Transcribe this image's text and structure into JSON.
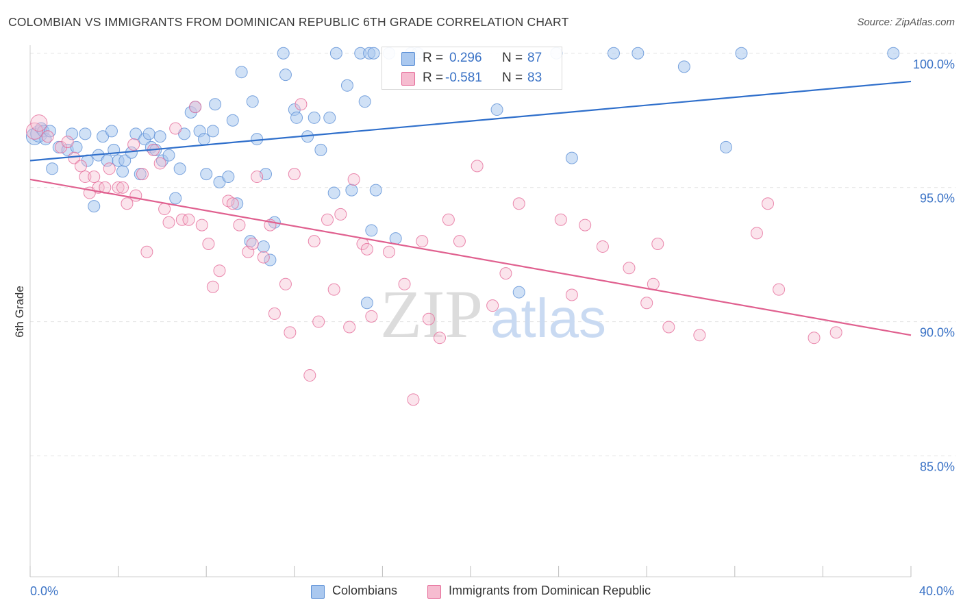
{
  "title": "COLOMBIAN VS IMMIGRANTS FROM DOMINICAN REPUBLIC 6TH GRADE CORRELATION CHART",
  "source": "Source: ZipAtlas.com",
  "watermark": {
    "zip": "ZIP",
    "atlas": "atlas"
  },
  "legend_top": {
    "rows": [
      {
        "r_label": "R =",
        "r_value": "0.296",
        "n_label": "N =",
        "n_value": "87",
        "color": "#aac8ef"
      },
      {
        "r_label": "R =",
        "r_value": "-0.581",
        "n_label": "N =",
        "n_value": "83",
        "color": "#f6bcd0"
      }
    ]
  },
  "legend_bottom": [
    {
      "label": "Colombians",
      "color": "#aac8ef"
    },
    {
      "label": "Immigrants from Dominican Republic",
      "color": "#f6bcd0"
    }
  ],
  "chart_data": {
    "type": "scatter",
    "title": "COLOMBIAN VS IMMIGRANTS FROM DOMINICAN REPUBLIC 6TH GRADE CORRELATION CHART",
    "xlabel": "",
    "ylabel": "6th Grade",
    "xlim": [
      0,
      40
    ],
    "ylim": [
      80.5,
      100.3
    ],
    "x_tick_labels": {
      "left": "0.0%",
      "right": "40.0%"
    },
    "y_ticks": [
      {
        "value": 100,
        "label": "100.0%"
      },
      {
        "value": 95,
        "label": "95.0%"
      },
      {
        "value": 90,
        "label": "90.0%"
      },
      {
        "value": 85,
        "label": "85.0%"
      }
    ],
    "x_minor_ticks": [
      0,
      4,
      8,
      12,
      16,
      20,
      24,
      28,
      32,
      36,
      40
    ],
    "grid": true,
    "series": [
      {
        "name": "Colombians",
        "color": "#5b8fd6",
        "fill": "#aac8ef",
        "trend": {
          "x": [
            0,
            40
          ],
          "y": [
            96.0,
            98.95
          ]
        },
        "points": [
          [
            0.2,
            96.9
          ],
          [
            0.4,
            97.0
          ],
          [
            0.5,
            97.2
          ],
          [
            0.6,
            97.1
          ],
          [
            0.7,
            96.8
          ],
          [
            0.9,
            97.1
          ],
          [
            1.3,
            96.5
          ],
          [
            1.0,
            95.7
          ],
          [
            1.7,
            96.4
          ],
          [
            1.9,
            97.0
          ],
          [
            2.1,
            96.5
          ],
          [
            2.5,
            97.0
          ],
          [
            2.6,
            96.0
          ],
          [
            2.9,
            94.3
          ],
          [
            3.1,
            96.2
          ],
          [
            3.3,
            96.9
          ],
          [
            3.5,
            96.0
          ],
          [
            3.7,
            97.1
          ],
          [
            3.8,
            96.4
          ],
          [
            4.0,
            96.0
          ],
          [
            4.2,
            95.6
          ],
          [
            4.3,
            96.0
          ],
          [
            4.6,
            96.3
          ],
          [
            4.8,
            97.0
          ],
          [
            5.0,
            95.5
          ],
          [
            5.2,
            96.8
          ],
          [
            5.4,
            97.0
          ],
          [
            5.5,
            96.5
          ],
          [
            5.7,
            96.4
          ],
          [
            5.9,
            96.9
          ],
          [
            6.0,
            96.0
          ],
          [
            6.3,
            96.2
          ],
          [
            6.6,
            94.6
          ],
          [
            6.8,
            95.7
          ],
          [
            7.0,
            97.0
          ],
          [
            7.3,
            97.8
          ],
          [
            7.5,
            98.0
          ],
          [
            7.7,
            97.1
          ],
          [
            7.9,
            96.8
          ],
          [
            8.0,
            95.5
          ],
          [
            8.3,
            97.1
          ],
          [
            8.4,
            98.1
          ],
          [
            8.6,
            95.2
          ],
          [
            9.0,
            95.4
          ],
          [
            9.2,
            97.5
          ],
          [
            9.4,
            94.4
          ],
          [
            9.6,
            99.3
          ],
          [
            10.0,
            93.0
          ],
          [
            10.1,
            98.2
          ],
          [
            10.3,
            96.8
          ],
          [
            10.6,
            92.8
          ],
          [
            10.7,
            95.5
          ],
          [
            10.9,
            92.3
          ],
          [
            11.1,
            93.7
          ],
          [
            11.5,
            100.0
          ],
          [
            11.6,
            99.2
          ],
          [
            12.0,
            97.9
          ],
          [
            12.1,
            97.6
          ],
          [
            12.6,
            96.9
          ],
          [
            12.9,
            97.6
          ],
          [
            13.2,
            96.4
          ],
          [
            13.6,
            97.6
          ],
          [
            13.8,
            94.8
          ],
          [
            13.9,
            100.0
          ],
          [
            14.4,
            98.8
          ],
          [
            14.6,
            94.9
          ],
          [
            15.0,
            100.0
          ],
          [
            15.2,
            98.2
          ],
          [
            15.3,
            90.7
          ],
          [
            15.4,
            100.0
          ],
          [
            15.5,
            93.4
          ],
          [
            15.6,
            100.0
          ],
          [
            15.7,
            94.9
          ],
          [
            16.3,
            100.0
          ],
          [
            16.6,
            93.1
          ],
          [
            17.3,
            100.0
          ],
          [
            17.6,
            100.0
          ],
          [
            21.2,
            97.9
          ],
          [
            22.2,
            91.1
          ],
          [
            23.9,
            100.0
          ],
          [
            24.6,
            96.1
          ],
          [
            26.5,
            100.0
          ],
          [
            27.6,
            100.0
          ],
          [
            29.7,
            99.5
          ],
          [
            31.6,
            96.5
          ],
          [
            32.3,
            100.0
          ],
          [
            39.2,
            100.0
          ]
        ]
      },
      {
        "name": "Immigrants from Dominican Republic",
        "color": "#e56a98",
        "fill": "#f6bcd0",
        "trend": {
          "x": [
            0,
            40
          ],
          "y": [
            95.3,
            89.5
          ]
        },
        "points": [
          [
            0.2,
            97.1
          ],
          [
            0.4,
            97.4
          ],
          [
            0.8,
            96.9
          ],
          [
            1.4,
            96.5
          ],
          [
            1.7,
            96.7
          ],
          [
            2.0,
            96.1
          ],
          [
            2.3,
            95.8
          ],
          [
            2.5,
            95.4
          ],
          [
            2.7,
            94.8
          ],
          [
            2.9,
            95.4
          ],
          [
            3.1,
            95.0
          ],
          [
            3.4,
            95.0
          ],
          [
            3.6,
            95.7
          ],
          [
            4.0,
            95.0
          ],
          [
            4.2,
            95.0
          ],
          [
            4.4,
            94.4
          ],
          [
            4.7,
            96.6
          ],
          [
            4.8,
            94.7
          ],
          [
            5.1,
            95.5
          ],
          [
            5.3,
            92.6
          ],
          [
            5.6,
            96.4
          ],
          [
            5.9,
            95.9
          ],
          [
            6.1,
            94.2
          ],
          [
            6.3,
            93.7
          ],
          [
            6.6,
            97.2
          ],
          [
            6.9,
            93.8
          ],
          [
            7.2,
            93.8
          ],
          [
            7.5,
            98.0
          ],
          [
            7.8,
            93.6
          ],
          [
            8.1,
            92.9
          ],
          [
            8.3,
            91.3
          ],
          [
            8.6,
            91.9
          ],
          [
            9.0,
            94.5
          ],
          [
            9.2,
            94.4
          ],
          [
            9.5,
            93.6
          ],
          [
            9.9,
            92.6
          ],
          [
            10.1,
            92.9
          ],
          [
            10.3,
            95.4
          ],
          [
            10.6,
            92.4
          ],
          [
            10.9,
            93.6
          ],
          [
            11.1,
            90.3
          ],
          [
            11.6,
            91.4
          ],
          [
            11.8,
            89.6
          ],
          [
            12.0,
            95.5
          ],
          [
            12.3,
            98.1
          ],
          [
            12.7,
            88.0
          ],
          [
            12.9,
            93.0
          ],
          [
            13.1,
            90.0
          ],
          [
            13.5,
            93.8
          ],
          [
            13.8,
            91.2
          ],
          [
            14.1,
            94.0
          ],
          [
            14.5,
            89.8
          ],
          [
            14.7,
            95.3
          ],
          [
            15.1,
            92.9
          ],
          [
            15.3,
            92.7
          ],
          [
            15.5,
            90.2
          ],
          [
            16.3,
            92.6
          ],
          [
            17.0,
            91.4
          ],
          [
            17.4,
            87.1
          ],
          [
            17.8,
            93.0
          ],
          [
            18.1,
            90.1
          ],
          [
            18.6,
            89.4
          ],
          [
            19.0,
            93.8
          ],
          [
            19.5,
            93.0
          ],
          [
            20.3,
            95.8
          ],
          [
            21.0,
            90.6
          ],
          [
            21.6,
            91.8
          ],
          [
            22.2,
            94.4
          ],
          [
            24.1,
            93.8
          ],
          [
            24.6,
            91.0
          ],
          [
            25.2,
            93.6
          ],
          [
            26.0,
            92.8
          ],
          [
            27.2,
            92.0
          ],
          [
            28.0,
            90.7
          ],
          [
            28.3,
            91.4
          ],
          [
            28.5,
            92.9
          ],
          [
            29.0,
            89.8
          ],
          [
            30.4,
            89.5
          ],
          [
            33.0,
            93.3
          ],
          [
            33.5,
            94.4
          ],
          [
            34.0,
            91.2
          ],
          [
            35.6,
            89.4
          ],
          [
            36.6,
            89.6
          ]
        ]
      }
    ]
  }
}
